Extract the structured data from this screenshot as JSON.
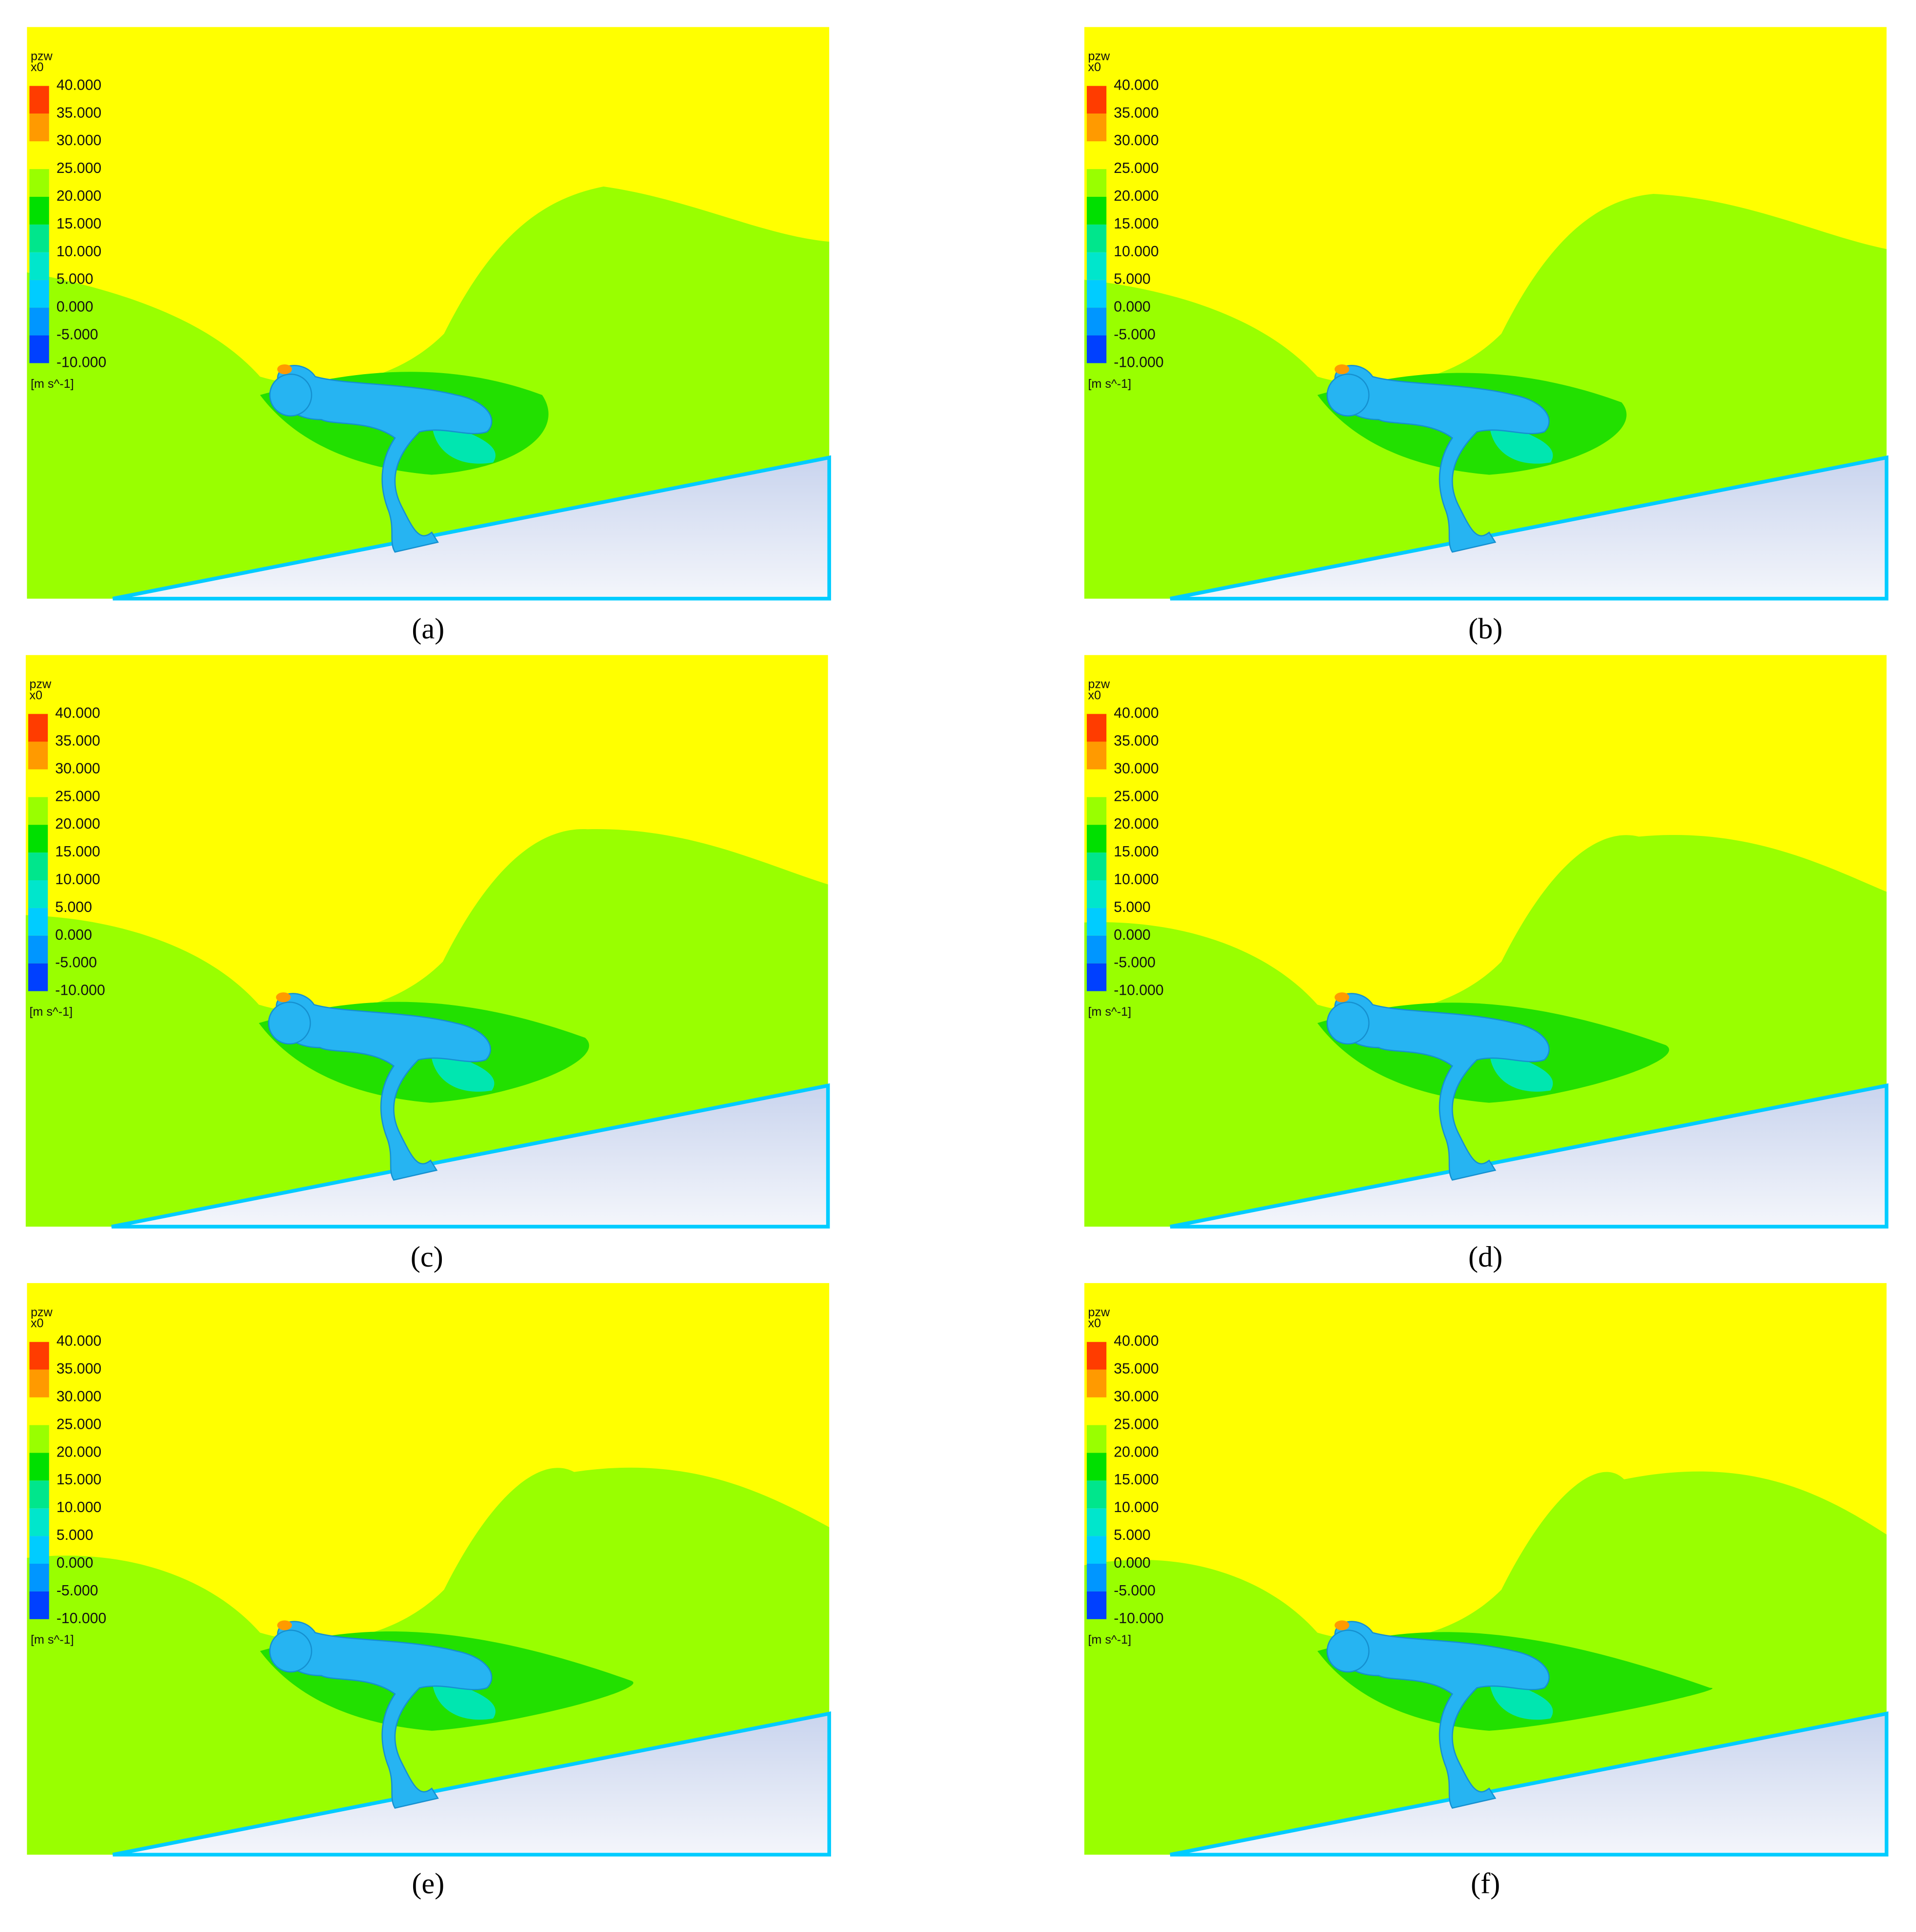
{
  "panels": [
    {
      "caption": "(a)",
      "legend": {
        "title": "pzw",
        "subtitle": "x0",
        "labels": [
          "40.000",
          "35.000",
          "30.000",
          "25.000",
          "20.000",
          "15.000",
          "10.000",
          "5.000",
          "0.000",
          "-5.000",
          "-10.000"
        ],
        "unit": "[m s^-1]"
      }
    },
    {
      "caption": "(b)",
      "legend": {
        "title": "pzw",
        "subtitle": "x0",
        "labels": [
          "40.000",
          "35.000",
          "30.000",
          "25.000",
          "20.000",
          "15.000",
          "10.000",
          "5.000",
          "0.000",
          "-5.000",
          "-10.000"
        ],
        "unit": "[m s^-1]"
      }
    },
    {
      "caption": "(c)",
      "legend": {
        "title": "pzw",
        "subtitle": "x0",
        "labels": [
          "40.000",
          "35.000",
          "30.000",
          "25.000",
          "20.000",
          "15.000",
          "10.000",
          "5.000",
          "0.000",
          "-5.000",
          "-10.000"
        ],
        "unit": "[m s^-1]"
      }
    },
    {
      "caption": "(d)",
      "legend": {
        "title": "pzw",
        "subtitle": "x0",
        "labels": [
          "40.000",
          "35.000",
          "30.000",
          "25.000",
          "20.000",
          "15.000",
          "10.000",
          "5.000",
          "0.000",
          "-5.000",
          "-10.000"
        ],
        "unit": "[m s^-1]"
      }
    },
    {
      "caption": "(e)",
      "legend": {
        "title": "pzw",
        "subtitle": "x0",
        "labels": [
          "40.000",
          "35.000",
          "30.000",
          "25.000",
          "20.000",
          "15.000",
          "10.000",
          "5.000",
          "0.000",
          "-5.000",
          "-10.000"
        ],
        "unit": "[m s^-1]"
      }
    },
    {
      "caption": "(f)",
      "legend": {
        "title": "pzw",
        "subtitle": "x0",
        "labels": [
          "40.000",
          "35.000",
          "30.000",
          "25.000",
          "20.000",
          "15.000",
          "10.000",
          "5.000",
          "0.000",
          "-5.000",
          "-10.000"
        ],
        "unit": "[m s^-1]"
      }
    }
  ]
}
